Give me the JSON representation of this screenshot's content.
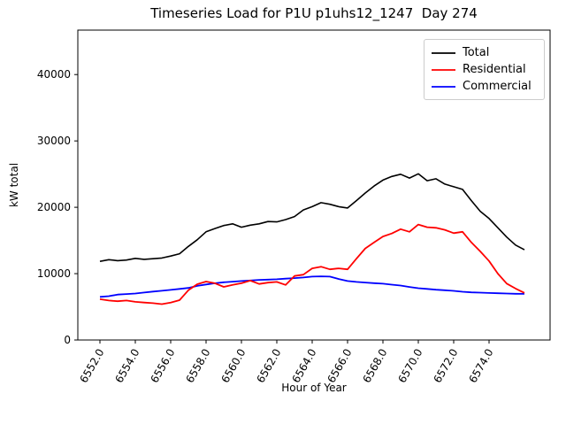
{
  "title": "Timeseries Load for P1U p1uhs12_1247  Day 274",
  "chart_data": {
    "type": "line",
    "title": "Timeseries Load for P1U p1uhs12_1247  Day 274",
    "xlabel": "Hour of Year",
    "ylabel": "kW total",
    "grid": false,
    "legend_position": "upper right",
    "xlim": [
      6550.75,
      6577.45
    ],
    "ylim": [
      0,
      46700
    ],
    "xticks": [
      6552,
      6554,
      6556,
      6558,
      6560,
      6562,
      6564,
      6566,
      6568,
      6570,
      6572,
      6574
    ],
    "xtick_labels": [
      "6552.0",
      "6554.0",
      "6556.0",
      "6558.0",
      "6560.0",
      "6562.0",
      "6564.0",
      "6566.0",
      "6568.0",
      "6570.0",
      "6572.0",
      "6574.0"
    ],
    "yticks": [
      0,
      10000,
      20000,
      30000,
      40000
    ],
    "ytick_labels": [
      "0",
      "10000",
      "20000",
      "30000",
      "40000"
    ],
    "x": [
      6552.0,
      6552.5,
      6553.0,
      6553.5,
      6554.0,
      6554.5,
      6555.0,
      6555.5,
      6556.0,
      6556.5,
      6557.0,
      6557.5,
      6558.0,
      6558.5,
      6559.0,
      6559.5,
      6560.0,
      6560.5,
      6561.0,
      6561.5,
      6562.0,
      6562.5,
      6563.0,
      6563.5,
      6564.0,
      6564.5,
      6565.0,
      6565.5,
      6566.0,
      6566.5,
      6567.0,
      6567.5,
      6568.0,
      6568.5,
      6569.0,
      6569.5,
      6570.0,
      6570.5,
      6571.0,
      6571.5,
      6572.0,
      6572.5,
      6573.0,
      6573.5,
      6574.0,
      6574.5,
      6575.0,
      6575.5,
      6576.0
    ],
    "series": [
      {
        "name": "Total",
        "color": "#000000",
        "values": [
          11850,
          12100,
          11950,
          12050,
          12300,
          12150,
          12250,
          12350,
          12650,
          13000,
          14100,
          15100,
          16300,
          16800,
          17250,
          17500,
          17000,
          17300,
          17500,
          17850,
          17800,
          18150,
          18600,
          19600,
          20100,
          20700,
          20450,
          20100,
          19900,
          21000,
          22150,
          23200,
          24100,
          24650,
          24980,
          24400,
          25050,
          24000,
          24300,
          23500,
          23100,
          22700,
          21000,
          19400,
          18300,
          16900,
          15500,
          14300,
          13600
        ]
      },
      {
        "name": "Residential",
        "color": "#ff0000",
        "values": [
          6150,
          5950,
          5850,
          5950,
          5750,
          5650,
          5550,
          5400,
          5650,
          6000,
          7500,
          8400,
          8800,
          8550,
          8000,
          8300,
          8550,
          8950,
          8450,
          8650,
          8750,
          8300,
          9650,
          9850,
          10800,
          11050,
          10650,
          10800,
          10650,
          12250,
          13800,
          14700,
          15600,
          16050,
          16700,
          16300,
          17400,
          17000,
          16900,
          16600,
          16100,
          16300,
          14700,
          13350,
          11900,
          10000,
          8500,
          7750,
          7100
        ]
      },
      {
        "name": "Commercial",
        "color": "#0000ff",
        "values": [
          6500,
          6600,
          6850,
          6930,
          7000,
          7150,
          7300,
          7420,
          7550,
          7700,
          7850,
          8150,
          8370,
          8550,
          8700,
          8790,
          8880,
          8970,
          9060,
          9100,
          9150,
          9240,
          9330,
          9420,
          9550,
          9600,
          9550,
          9190,
          8880,
          8750,
          8660,
          8570,
          8480,
          8340,
          8210,
          7990,
          7800,
          7700,
          7580,
          7500,
          7400,
          7270,
          7180,
          7140,
          7090,
          7040,
          7000,
          6960,
          6950
        ]
      }
    ]
  }
}
